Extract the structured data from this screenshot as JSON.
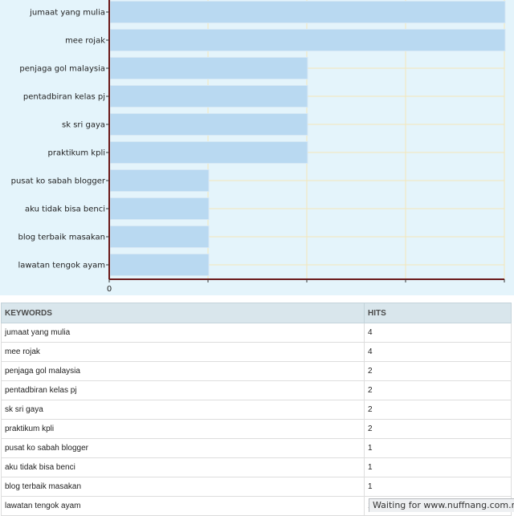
{
  "chart_data": {
    "type": "bar",
    "orientation": "horizontal",
    "categories": [
      "jumaat yang mulia",
      "mee rojak",
      "penjaga gol malaysia",
      "pentadbiran kelas pj",
      "sk sri gaya",
      "praktikum kpli",
      "pusat ko sabah blogger",
      "aku tidak bisa benci",
      "blog terbaik masakan",
      "lawatan tengok ayam"
    ],
    "values": [
      4,
      4,
      2,
      2,
      2,
      2,
      1,
      1,
      1,
      1
    ],
    "xlim": [
      0,
      4
    ],
    "x_tick_labels": [
      "0"
    ],
    "grid": true,
    "bar_color": "#b9d9f1",
    "background_color": "#e4f4fb",
    "axis_color": "#6b1a1a",
    "title": "",
    "xlabel": "",
    "ylabel": ""
  },
  "table": {
    "headers": [
      "KEYWORDS",
      "HITS"
    ],
    "rows": [
      [
        "jumaat yang mulia",
        "4"
      ],
      [
        "mee rojak",
        "4"
      ],
      [
        "penjaga gol malaysia",
        "2"
      ],
      [
        "pentadbiran kelas pj",
        "2"
      ],
      [
        "sk sri gaya",
        "2"
      ],
      [
        "praktikum kpli",
        "2"
      ],
      [
        "pusat ko sabah blogger",
        "1"
      ],
      [
        "aku tidak bisa benci",
        "1"
      ],
      [
        "blog terbaik masakan",
        "1"
      ],
      [
        "lawatan tengok ayam",
        "1"
      ]
    ]
  },
  "status_bar": {
    "text": "Waiting for www.nuffnang.com.my..."
  }
}
